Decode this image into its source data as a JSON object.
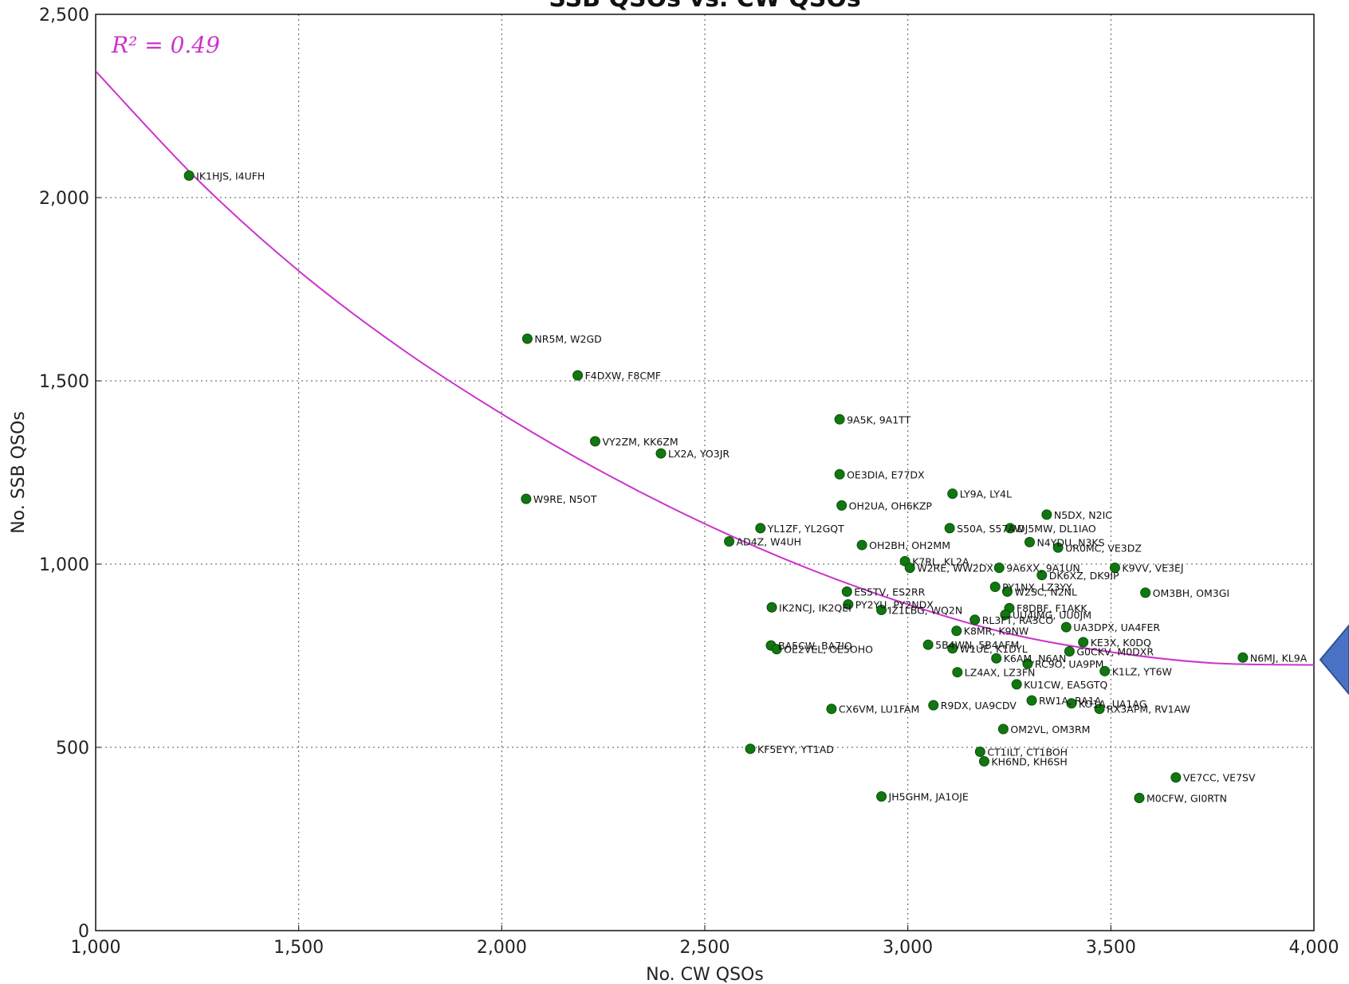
{
  "colors": {
    "point": "#117711",
    "point_stroke": "#0b4f0b",
    "fit_line": "#cc33cc",
    "r2_text": "#cc33cc",
    "arrow_fill": "#4a72c4",
    "arrow_stroke": "#2f528f"
  },
  "chart_data": {
    "type": "scatter",
    "title": "SSB QSOs vs. CW QSOs",
    "xlabel": "No. CW QSOs",
    "ylabel": "No. SSB QSOs",
    "xlim": [
      1000,
      4000
    ],
    "ylim": [
      0,
      2500
    ],
    "x_ticks": [
      1000,
      1500,
      2000,
      2500,
      3000,
      3500,
      4000
    ],
    "y_ticks": [
      0,
      500,
      1000,
      1500,
      2000,
      2500
    ],
    "x_tick_labels": [
      "1,000",
      "1,500",
      "2,000",
      "2,500",
      "3,000",
      "3,500",
      "4,000"
    ],
    "y_tick_labels": [
      "0",
      "500",
      "1,000",
      "1,500",
      "2,000",
      "2,500"
    ],
    "grid": true,
    "annotation": "R² = 0.49",
    "fit_curve": {
      "type": "quadratic",
      "x": [
        1000,
        1250,
        1500,
        1750,
        2000,
        2250,
        2500,
        2750,
        3000,
        3250,
        3500,
        3750,
        4000
      ],
      "y": [
        2345,
        2050,
        1800,
        1590,
        1410,
        1250,
        1110,
        990,
        890,
        810,
        760,
        730,
        725
      ]
    },
    "points": [
      {
        "label": "IK1HJS, I4UFH",
        "x": 1230,
        "y": 2060
      },
      {
        "label": "NR5M, W2GD",
        "x": 2063,
        "y": 1615
      },
      {
        "label": "F4DXW, F8CMF",
        "x": 2187,
        "y": 1515
      },
      {
        "label": "VY2ZM, KK6ZM",
        "x": 2230,
        "y": 1335
      },
      {
        "label": "LX2A, YO3JR",
        "x": 2392,
        "y": 1302
      },
      {
        "label": "W9RE, N5OT",
        "x": 2060,
        "y": 1178
      },
      {
        "label": "9A5K, 9A1TT",
        "x": 2832,
        "y": 1395
      },
      {
        "label": "OE3DIA, E77DX",
        "x": 2832,
        "y": 1245
      },
      {
        "label": "OH2UA, OH6KZP",
        "x": 2837,
        "y": 1160
      },
      {
        "label": "LY9A, LY4L",
        "x": 3110,
        "y": 1192
      },
      {
        "label": "N5DX, N2IC",
        "x": 3342,
        "y": 1135
      },
      {
        "label": "YL1ZF, YL2GQT",
        "x": 2637,
        "y": 1098
      },
      {
        "label": "S50A, S57AW",
        "x": 3103,
        "y": 1098
      },
      {
        "label": "DJ5MW, DL1IAO",
        "x": 3252,
        "y": 1098
      },
      {
        "label": "AD4Z, W4UH",
        "x": 2560,
        "y": 1062
      },
      {
        "label": "OH2BH, OH2MM",
        "x": 2887,
        "y": 1052
      },
      {
        "label": "N4YDU, N3KS",
        "x": 3300,
        "y": 1060
      },
      {
        "label": "UR0MC, VE3DZ",
        "x": 3370,
        "y": 1045
      },
      {
        "label": "K7RL, KL2A",
        "x": 2993,
        "y": 1008
      },
      {
        "label": "W2RE, WW2DX",
        "x": 3005,
        "y": 990
      },
      {
        "label": "9A6XX, 9A1UN",
        "x": 3225,
        "y": 990
      },
      {
        "label": "DK6XZ, DK9IP",
        "x": 3330,
        "y": 970
      },
      {
        "label": "K9VV, VE3EJ",
        "x": 3510,
        "y": 990
      },
      {
        "label": "PY1NX, LZ3YY",
        "x": 3215,
        "y": 938
      },
      {
        "label": "W2SC, N2NL",
        "x": 3245,
        "y": 925
      },
      {
        "label": "OM3BH, OM3GI",
        "x": 3585,
        "y": 922
      },
      {
        "label": "ES5TV, ES2RR",
        "x": 2850,
        "y": 925
      },
      {
        "label": "PY2YU, PY2NDX",
        "x": 2853,
        "y": 890
      },
      {
        "label": "IK2NCJ, IK2QEI",
        "x": 2665,
        "y": 882
      },
      {
        "label": "IZ1LBG, WQ2N",
        "x": 2935,
        "y": 875
      },
      {
        "label": "F8DBF, F1AKK",
        "x": 3250,
        "y": 880
      },
      {
        "label": "UU4JMG, UU0JM",
        "x": 3240,
        "y": 862
      },
      {
        "label": "RL3FT, RA3CO",
        "x": 3165,
        "y": 848
      },
      {
        "label": "UA3DPX, UA4FER",
        "x": 3390,
        "y": 828
      },
      {
        "label": "K8MR, K9NW",
        "x": 3120,
        "y": 818
      },
      {
        "label": "KE3X, K0DQ",
        "x": 3432,
        "y": 787
      },
      {
        "label": "BA5CW, BA7IO",
        "x": 2663,
        "y": 778
      },
      {
        "label": "OE2VEL, OE5OHO",
        "x": 2677,
        "y": 768
      },
      {
        "label": "5B4WN, 5B4AFM",
        "x": 3050,
        "y": 780
      },
      {
        "label": "W1UE, K1DYL",
        "x": 3110,
        "y": 770
      },
      {
        "label": "G0CKV, M0DXR",
        "x": 3398,
        "y": 762
      },
      {
        "label": "K6AM, N6AN",
        "x": 3218,
        "y": 743
      },
      {
        "label": "RC9O, UA9PM",
        "x": 3295,
        "y": 728
      },
      {
        "label": "N6MJ, KL9A",
        "x": 3825,
        "y": 745
      },
      {
        "label": "LZ4AX, LZ3FN",
        "x": 3122,
        "y": 705
      },
      {
        "label": "K1LZ, YT6W",
        "x": 3485,
        "y": 708
      },
      {
        "label": "KU1CW, EA5GTQ",
        "x": 3268,
        "y": 672
      },
      {
        "label": "RW1A, RA1A",
        "x": 3305,
        "y": 628
      },
      {
        "label": "KO1A, UA1AG",
        "x": 3403,
        "y": 620
      },
      {
        "label": "RX3APM, RV1AW",
        "x": 3472,
        "y": 605
      },
      {
        "label": "CX6VM, LU1FAM",
        "x": 2812,
        "y": 605
      },
      {
        "label": "R9DX, UA9CDV",
        "x": 3063,
        "y": 615
      },
      {
        "label": "OM2VL, OM3RM",
        "x": 3235,
        "y": 550
      },
      {
        "label": "KF5EYY, YT1AD",
        "x": 2612,
        "y": 496
      },
      {
        "label": "CT1ILT, CT1BOH",
        "x": 3178,
        "y": 488
      },
      {
        "label": "KH6ND, KH6SH",
        "x": 3188,
        "y": 462
      },
      {
        "label": "VE7CC, VE7SV",
        "x": 3660,
        "y": 418
      },
      {
        "label": "JH5GHM, JA1OJE",
        "x": 2935,
        "y": 366
      },
      {
        "label": "M0CFW, GI0RTN",
        "x": 3570,
        "y": 362
      }
    ]
  }
}
